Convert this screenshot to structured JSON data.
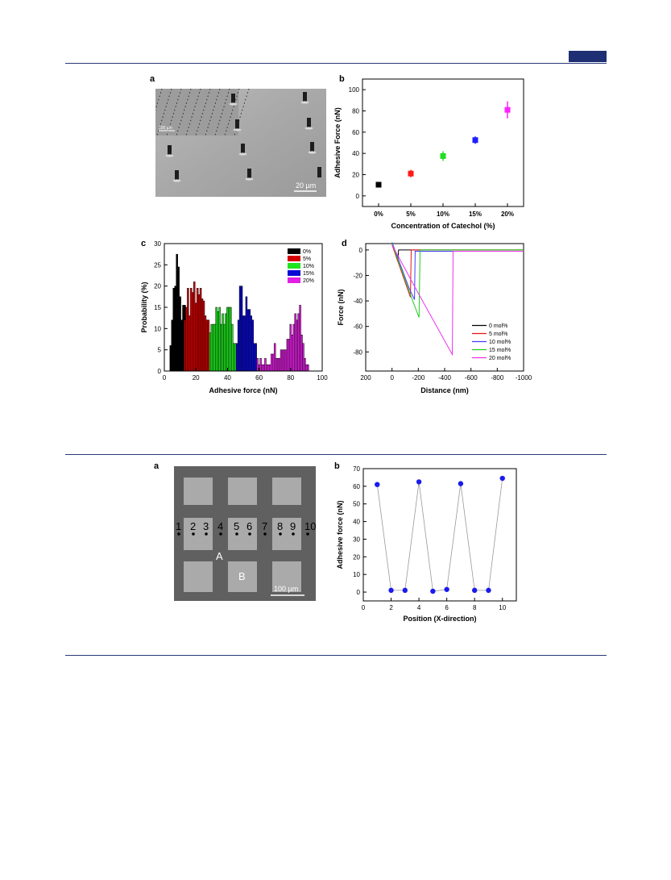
{
  "fig1": {
    "a": {
      "letter": "a",
      "inset_scale": "100 µm",
      "scale": "20 µm"
    },
    "b": {
      "letter": "b"
    },
    "c": {
      "letter": "c"
    },
    "d": {
      "letter": "d"
    }
  },
  "fig2": {
    "a": {
      "letter": "a",
      "position_labels": [
        "1",
        "2",
        "3",
        "4",
        "5",
        "6",
        "7",
        "8",
        "9",
        "10"
      ],
      "region_a": "A",
      "region_b": "B",
      "scale": "100 µm"
    },
    "b": {
      "letter": "b"
    }
  },
  "chart_data": [
    {
      "id": "fig1b",
      "type": "scatter",
      "xlabel": "Concentration of Catechol (%)",
      "ylabel": "Adhesive Force (nN)",
      "categories": [
        "0%",
        "5%",
        "10%",
        "15%",
        "20%"
      ],
      "values": [
        10.5,
        21,
        37.5,
        52.5,
        81
      ],
      "errors": [
        2.5,
        3.5,
        4.5,
        3.5,
        8
      ],
      "colors": [
        "#000000",
        "#ff1a1a",
        "#22dd22",
        "#1f1fff",
        "#ff22ff"
      ],
      "ylim": [
        -10,
        110
      ],
      "yticks": [
        0,
        20,
        40,
        60,
        80,
        100
      ]
    },
    {
      "id": "fig1c",
      "type": "bar",
      "xlabel": "Adhesive force (nN)",
      "ylabel": "Probability (%)",
      "xlim": [
        0,
        100
      ],
      "ylim": [
        0,
        30
      ],
      "xticks": [
        0,
        20,
        40,
        60,
        80,
        100
      ],
      "yticks": [
        0,
        5,
        10,
        15,
        20,
        25,
        30
      ],
      "legend": "top-right",
      "series": [
        {
          "name": "0%",
          "color": "#000000",
          "bins": [
            [
              4,
              6
            ],
            [
              5,
              12
            ],
            [
              6,
              19.5
            ],
            [
              7,
              20
            ],
            [
              8,
              27.5
            ],
            [
              9,
              24.5
            ],
            [
              10,
              17.5
            ],
            [
              11,
              12
            ],
            [
              12,
              15.5
            ],
            [
              13,
              15.5
            ],
            [
              14,
              11
            ]
          ]
        },
        {
          "name": "5%",
          "color": "#d40000",
          "bins": [
            [
              13,
              12
            ],
            [
              14,
              15
            ],
            [
              15,
              19.5
            ],
            [
              16,
              13
            ],
            [
              17,
              19.5
            ],
            [
              18,
              18.5
            ],
            [
              19,
              21
            ],
            [
              20,
              16
            ],
            [
              21,
              19.5
            ],
            [
              22,
              18
            ],
            [
              23,
              19.5
            ],
            [
              24,
              17
            ],
            [
              25,
              16.5
            ],
            [
              26,
              13
            ],
            [
              27,
              12
            ],
            [
              28,
              12
            ]
          ]
        },
        {
          "name": "10%",
          "color": "#1ee31e",
          "bins": [
            [
              29,
              9
            ],
            [
              30,
              11
            ],
            [
              31,
              11
            ],
            [
              32,
              11
            ],
            [
              33,
              15
            ],
            [
              34,
              14
            ],
            [
              35,
              15
            ],
            [
              36,
              11
            ],
            [
              37,
              13.5
            ],
            [
              38,
              11
            ],
            [
              39,
              13.5
            ],
            [
              40,
              15
            ],
            [
              41,
              15
            ],
            [
              42,
              15
            ],
            [
              43,
              11
            ],
            [
              44,
              6.5
            ],
            [
              45,
              6.5
            ]
          ]
        },
        {
          "name": "15%",
          "color": "#0a0ad4",
          "bins": [
            [
              46,
              6.5
            ],
            [
              47,
              12
            ],
            [
              48,
              20
            ],
            [
              49,
              20
            ],
            [
              50,
              13
            ],
            [
              51,
              13
            ],
            [
              52,
              17.5
            ],
            [
              53,
              14.5
            ],
            [
              54,
              14.5
            ],
            [
              55,
              13
            ],
            [
              56,
              12
            ],
            [
              57,
              6.5
            ],
            [
              58,
              6.5
            ]
          ]
        },
        {
          "name": "20%",
          "color": "#e21fe2",
          "bins": [
            [
              59,
              3
            ],
            [
              60,
              1.5
            ],
            [
              61,
              3
            ],
            [
              62,
              1.5
            ],
            [
              63,
              1.5
            ],
            [
              64,
              3
            ],
            [
              65,
              1.5
            ],
            [
              66,
              1.5
            ],
            [
              67,
              1.5
            ],
            [
              68,
              4
            ],
            [
              69,
              4
            ],
            [
              70,
              6.5
            ],
            [
              71,
              3
            ],
            [
              72,
              3
            ],
            [
              73,
              3
            ],
            [
              74,
              5
            ],
            [
              75,
              5
            ],
            [
              76,
              5
            ],
            [
              77,
              5
            ],
            [
              78,
              7.5
            ],
            [
              79,
              7.5
            ],
            [
              80,
              11
            ],
            [
              81,
              8.5
            ],
            [
              82,
              11
            ],
            [
              83,
              13.5
            ],
            [
              84,
              12
            ],
            [
              85,
              13.5
            ],
            [
              86,
              15.5
            ],
            [
              87,
              8.5
            ],
            [
              88,
              6.5
            ],
            [
              89,
              3
            ],
            [
              90,
              1.5
            ],
            [
              91,
              1.5
            ]
          ]
        }
      ]
    },
    {
      "id": "fig1d",
      "type": "line",
      "xlabel": "Distance (nm)",
      "ylabel": "Force (nN)",
      "xlim": [
        200,
        -1000
      ],
      "ylim": [
        -95,
        5
      ],
      "xticks": [
        200,
        0,
        -200,
        -400,
        -600,
        -800,
        -1000
      ],
      "yticks": [
        0,
        -20,
        -40,
        -60,
        -80
      ],
      "legend": "bottom-right",
      "series": [
        {
          "name": "0 mol%",
          "color": "#000000",
          "points": [
            [
              0,
              5
            ],
            [
              -44,
              -9
            ],
            [
              -50,
              0
            ],
            [
              -1000,
              0
            ]
          ]
        },
        {
          "name": "5 mol%",
          "color": "#ee1111",
          "points": [
            [
              0,
              4
            ],
            [
              -140,
              -37
            ],
            [
              -146,
              0
            ],
            [
              -1000,
              0
            ]
          ]
        },
        {
          "name": "10 mol%",
          "color": "#4040ff",
          "points": [
            [
              0,
              6
            ],
            [
              -130,
              -30
            ],
            [
              -171,
              -39
            ],
            [
              -176,
              -1
            ],
            [
              -1000,
              -1
            ]
          ]
        },
        {
          "name": "15 mol%",
          "color": "#22cc22",
          "points": [
            [
              0,
              5
            ],
            [
              -150,
              -38
            ],
            [
              -205,
              -53
            ],
            [
              -213,
              0
            ],
            [
              -1000,
              0
            ]
          ]
        },
        {
          "name": "20 mol%",
          "color": "#ee33ee",
          "points": [
            [
              0,
              4
            ],
            [
              -200,
              -34
            ],
            [
              -458,
              -82
            ],
            [
              -464,
              -1
            ],
            [
              -1000,
              -1
            ]
          ]
        }
      ]
    },
    {
      "id": "fig2b",
      "type": "line",
      "xlabel": "Position (X-direction)",
      "ylabel": "Adhesive force (nN)",
      "xlim": [
        0,
        11
      ],
      "ylim": [
        -5,
        70
      ],
      "xticks": [
        0,
        2,
        4,
        6,
        8,
        10
      ],
      "yticks": [
        0,
        10,
        20,
        30,
        40,
        50,
        60,
        70
      ],
      "series": [
        {
          "color": "#1a1aee",
          "x": [
            1,
            2,
            3,
            4,
            5,
            6,
            7,
            8,
            9,
            10
          ],
          "y": [
            61,
            1,
            1,
            62.5,
            0.5,
            1.5,
            61.5,
            1,
            1,
            64.5
          ]
        }
      ]
    }
  ]
}
